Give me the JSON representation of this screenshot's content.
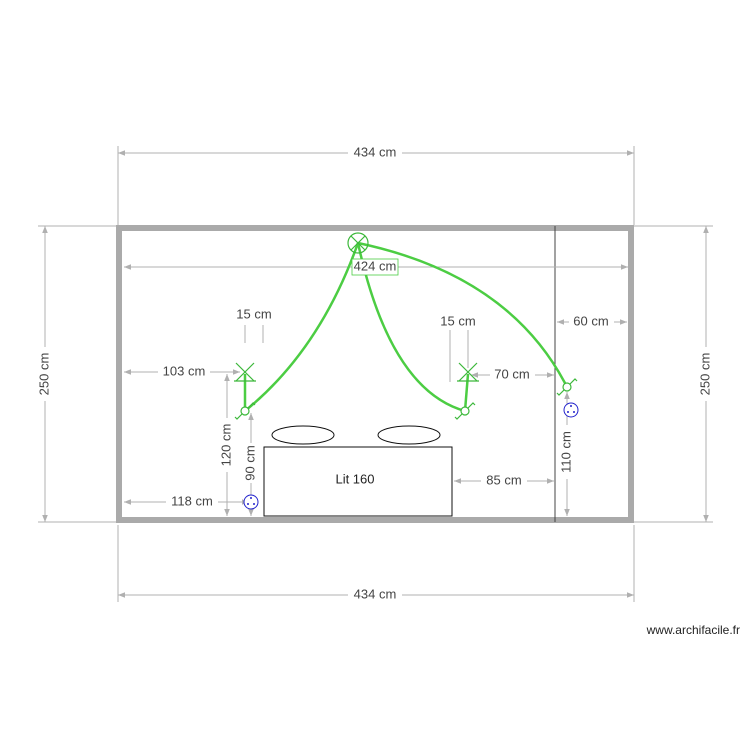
{
  "plan": {
    "dimensions": {
      "top_width": "434 cm",
      "bottom_width": "434 cm",
      "left_height": "250 cm",
      "right_height": "250 cm",
      "inner_width": "424 cm",
      "lamp_left_width": "15 cm",
      "lamp_right_width": "15 cm",
      "closet_depth": "60 cm",
      "lamp_left_offset": "103 cm",
      "lamp_right_offset": "70 cm",
      "outlet_left_offset": "118 cm",
      "bed_to_closet": "85 cm",
      "lamp_left_height": "120 cm",
      "switch_left_height": "90 cm",
      "switch_right_height": "110 cm"
    },
    "furniture": {
      "bed_label": "Lit 160"
    },
    "colors": {
      "wall": "#aaaaaa",
      "electric": "#4ccd43",
      "outlet": "#2222cc",
      "dimension": "#b0b0b0"
    },
    "watermark": "www.archifacile.fr"
  }
}
